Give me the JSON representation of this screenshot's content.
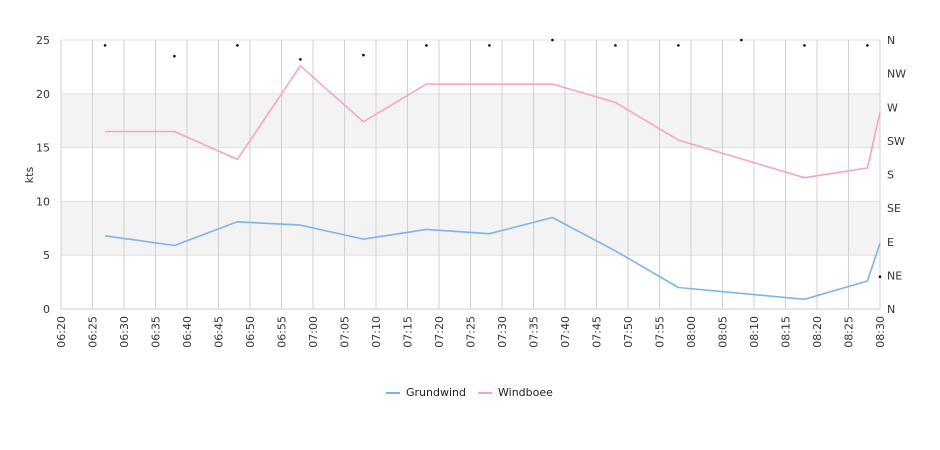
{
  "chart_data": {
    "type": "line",
    "ylabel": "kts",
    "ylim": [
      0,
      25
    ],
    "y_ticks": [
      "0",
      "5",
      "10",
      "15",
      "20",
      "25"
    ],
    "x_range": [
      "06:20",
      "08:30"
    ],
    "x_ticks": [
      "06:20",
      "06:25",
      "06:30",
      "06:35",
      "06:40",
      "06:45",
      "06:50",
      "06:55",
      "07:00",
      "07:05",
      "07:10",
      "07:15",
      "07:20",
      "07:25",
      "07:30",
      "07:35",
      "07:40",
      "07:45",
      "07:50",
      "07:55",
      "08:00",
      "08:05",
      "08:10",
      "08:15",
      "08:20",
      "08:25",
      "08:30"
    ],
    "y2_ticks": [
      "N",
      "NE",
      "E",
      "SE",
      "S",
      "SW",
      "W",
      "NW",
      "N"
    ],
    "grid": true,
    "legend_position": "bottom",
    "series": [
      {
        "name": "Grundwind",
        "color": "#7cb5ec",
        "x": [
          "06:27",
          "06:38",
          "06:48",
          "06:58",
          "07:08",
          "07:18",
          "07:28",
          "07:38",
          "07:48",
          "07:58",
          "08:18",
          "08:28",
          "08:30"
        ],
        "values": [
          6.8,
          5.9,
          8.1,
          7.8,
          6.5,
          7.4,
          7.0,
          8.5,
          5.4,
          2.0,
          0.9,
          2.6,
          6.1
        ]
      },
      {
        "name": "Windboee",
        "color": "#f7a3c8",
        "x": [
          "06:27",
          "06:38",
          "06:48",
          "06:58",
          "07:08",
          "07:18",
          "07:28",
          "07:38",
          "07:48",
          "07:58",
          "08:18",
          "08:28",
          "08:30"
        ],
        "values": [
          16.5,
          16.5,
          13.9,
          22.6,
          17.4,
          20.9,
          20.9,
          20.9,
          19.2,
          15.7,
          12.2,
          13.1,
          18.3
        ]
      }
    ],
    "direction_markers": {
      "x": [
        "06:27",
        "06:38",
        "06:48",
        "06:58",
        "07:08",
        "07:18",
        "07:28",
        "07:38",
        "07:48",
        "07:58",
        "08:08",
        "08:18",
        "08:28",
        "08:30"
      ],
      "values": [
        24.5,
        23.5,
        24.5,
        23.2,
        23.6,
        24.5,
        24.5,
        25.0,
        24.5,
        24.5,
        25.0,
        24.5,
        24.5,
        3.0
      ]
    }
  }
}
